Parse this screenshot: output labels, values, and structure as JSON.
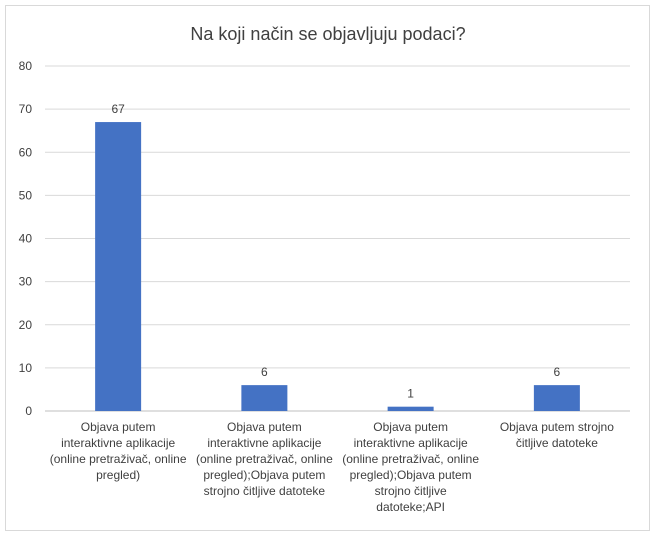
{
  "chart_data": {
    "type": "bar",
    "title": "Na koji način se objavljuju podaci?",
    "xlabel": "",
    "ylabel": "",
    "ylim": [
      0,
      80
    ],
    "yticks": [
      0,
      10,
      20,
      30,
      40,
      50,
      60,
      70,
      80
    ],
    "grid": true,
    "legend": "none",
    "bar_color": "#4472c4",
    "categories": [
      [
        "Objava putem",
        "interaktivne aplikacije",
        "(online pretraživač, online",
        "pregled)"
      ],
      [
        "Objava putem",
        "interaktivne aplikacije",
        "(online pretraživač, online",
        "pregled);Objava putem",
        "strojno čitljive datoteke"
      ],
      [
        "Objava putem",
        "interaktivne aplikacije",
        "(online pretraživač, online",
        "pregled);Objava putem",
        "strojno čitljive",
        "datoteke;API"
      ],
      [
        "Objava putem strojno",
        "čitljive datoteke"
      ]
    ],
    "values": [
      67,
      6,
      1,
      6
    ]
  }
}
